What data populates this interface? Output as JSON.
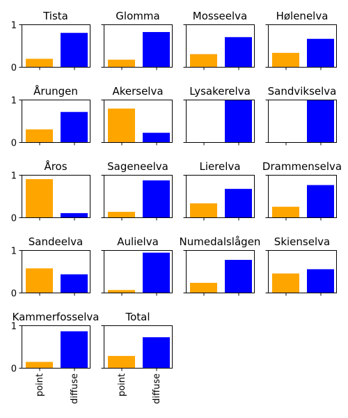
{
  "chart_data": {
    "type": "bar",
    "categories": [
      "point",
      "diffuse"
    ],
    "colors": {
      "point": "#FFA500",
      "diffuse": "#0000FF"
    },
    "ylim": [
      0,
      1
    ],
    "yticks": [
      "0",
      "1"
    ],
    "sharey": true,
    "grid": false,
    "legend": "none",
    "panels": [
      {
        "title": "Tista",
        "values": [
          0.19,
          0.8
        ]
      },
      {
        "title": "Glomma",
        "values": [
          0.17,
          0.82
        ]
      },
      {
        "title": "Mosseelva",
        "values": [
          0.3,
          0.7
        ]
      },
      {
        "title": "Hølenelva",
        "values": [
          0.33,
          0.66
        ]
      },
      {
        "title": "Årungen",
        "values": [
          0.3,
          0.71
        ]
      },
      {
        "title": "Akerselva",
        "values": [
          0.79,
          0.22
        ]
      },
      {
        "title": "Lysakerelva",
        "values": [
          0.0,
          1.0
        ]
      },
      {
        "title": "Sandvikselva",
        "values": [
          0.0,
          1.0
        ]
      },
      {
        "title": "Åros",
        "values": [
          0.9,
          0.1
        ]
      },
      {
        "title": "Sageneelva",
        "values": [
          0.13,
          0.87
        ]
      },
      {
        "title": "Lierelva",
        "values": [
          0.33,
          0.67
        ]
      },
      {
        "title": "Drammenselva",
        "values": [
          0.25,
          0.76
        ]
      },
      {
        "title": "Sandeelva",
        "values": [
          0.57,
          0.43
        ]
      },
      {
        "title": "Aulielva",
        "values": [
          0.06,
          0.94
        ]
      },
      {
        "title": "Numedalslågen",
        "values": [
          0.23,
          0.77
        ]
      },
      {
        "title": "Skienselva",
        "values": [
          0.45,
          0.55
        ]
      },
      {
        "title": "Kammerfosselva",
        "values": [
          0.14,
          0.86
        ]
      },
      {
        "title": "Total",
        "values": [
          0.28,
          0.72
        ]
      }
    ]
  }
}
